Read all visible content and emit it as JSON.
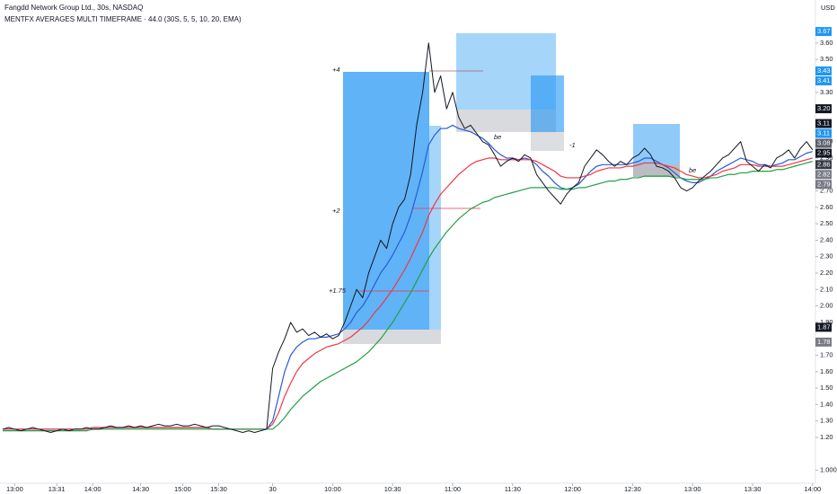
{
  "chart_data": {
    "type": "line",
    "title": "Fangdd Network Group Ltd., 30s, NASDAQ",
    "subtitle": "MENTFX AVERAGES MULTI TIMEFRAME · 44.0 (30S, 5, 5, 10, 20, EMA)",
    "currency": "USD",
    "annotations": [
      "+4",
      "+2",
      "+1.75",
      "be",
      "-1",
      "be"
    ],
    "categories": [
      null,
      null,
      "13:00",
      null,
      null,
      null,
      null,
      null,
      null,
      "13:31",
      null,
      null,
      null,
      null,
      null,
      "14:00",
      null,
      null,
      null,
      null,
      null,
      null,
      null,
      "14:30",
      null,
      null,
      null,
      null,
      null,
      null,
      "15:00",
      null,
      null,
      null,
      null,
      null,
      "15:30",
      null,
      null,
      null,
      null,
      null,
      null,
      null,
      null,
      "30",
      null,
      null,
      null,
      null,
      null,
      null,
      null,
      null,
      null,
      "10:00",
      null,
      null,
      null,
      null,
      null,
      null,
      null,
      null,
      null,
      "10:30",
      null,
      null,
      null,
      null,
      null,
      null,
      null,
      null,
      null,
      "11:00",
      null,
      null,
      null,
      null,
      null,
      null,
      null,
      null,
      null,
      "11:30",
      null,
      null,
      null,
      null,
      null,
      null,
      null,
      null,
      null,
      "12:00",
      null,
      null,
      null,
      null,
      null,
      null,
      null,
      null,
      null,
      "12:30",
      null,
      null,
      null,
      null,
      null,
      null,
      null,
      null,
      null,
      "13:00",
      null,
      null,
      null,
      null,
      null,
      null,
      null,
      null,
      null,
      "13:30",
      null,
      null,
      null,
      null,
      null,
      null,
      null,
      null,
      null,
      "14:00"
    ],
    "series": [
      {
        "color": "#131722",
        "values": [
          1.25,
          1.26,
          1.25,
          1.24,
          1.25,
          1.26,
          1.25,
          1.24,
          1.23,
          1.24,
          1.25,
          1.24,
          1.25,
          1.25,
          1.26,
          1.25,
          1.25,
          1.26,
          1.27,
          1.26,
          1.26,
          1.27,
          1.26,
          1.27,
          1.26,
          1.27,
          1.28,
          1.27,
          1.27,
          1.28,
          1.27,
          1.27,
          1.28,
          1.27,
          1.26,
          1.27,
          1.27,
          1.26,
          1.25,
          1.24,
          1.23,
          1.24,
          1.23,
          1.24,
          1.25,
          1.62,
          1.72,
          1.8,
          1.9,
          1.84,
          1.86,
          1.82,
          1.84,
          1.81,
          1.83,
          1.8,
          1.82,
          1.9,
          2.0,
          2.1,
          2.05,
          2.2,
          2.3,
          2.4,
          2.35,
          2.5,
          2.6,
          2.65,
          2.8,
          3.1,
          3.3,
          3.6,
          3.3,
          3.4,
          3.2,
          3.3,
          3.15,
          3.08,
          3.1,
          3.05,
          3.0,
          2.98,
          2.92,
          2.85,
          2.88,
          2.9,
          2.88,
          2.92,
          2.9,
          2.8,
          2.75,
          2.7,
          2.66,
          2.62,
          2.68,
          2.72,
          2.75,
          2.85,
          2.9,
          2.95,
          2.92,
          2.88,
          2.85,
          2.88,
          2.86,
          2.9,
          2.92,
          2.96,
          2.92,
          2.85,
          2.84,
          2.82,
          2.78,
          2.72,
          2.7,
          2.72,
          2.76,
          2.79,
          2.82,
          2.86,
          2.9,
          2.92,
          2.96,
          3.0,
          2.88,
          2.85,
          2.82,
          2.86,
          2.84,
          2.9,
          2.92,
          2.95,
          2.9,
          2.96,
          3.0,
          2.95
        ]
      },
      {
        "color": "#2a5bd7",
        "values": [
          1.25,
          1.25,
          1.25,
          1.25,
          1.25,
          1.25,
          1.25,
          1.25,
          1.25,
          1.25,
          1.25,
          1.25,
          1.25,
          1.25,
          1.25,
          1.26,
          1.26,
          1.26,
          1.26,
          1.26,
          1.26,
          1.26,
          1.26,
          1.26,
          1.26,
          1.26,
          1.26,
          1.26,
          1.26,
          1.26,
          1.26,
          1.26,
          1.26,
          1.26,
          1.26,
          1.25,
          1.25,
          1.25,
          1.25,
          1.25,
          1.25,
          1.25,
          1.25,
          1.25,
          1.25,
          1.3,
          1.45,
          1.6,
          1.7,
          1.75,
          1.78,
          1.8,
          1.8,
          1.81,
          1.81,
          1.82,
          1.83,
          1.86,
          1.9,
          1.96,
          2.0,
          2.06,
          2.13,
          2.2,
          2.25,
          2.31,
          2.38,
          2.45,
          2.55,
          2.68,
          2.82,
          2.98,
          3.04,
          3.08,
          3.08,
          3.1,
          3.08,
          3.07,
          3.06,
          3.04,
          3.02,
          2.99,
          2.95,
          2.92,
          2.9,
          2.9,
          2.89,
          2.9,
          2.89,
          2.86,
          2.82,
          2.79,
          2.75,
          2.72,
          2.71,
          2.72,
          2.74,
          2.78,
          2.82,
          2.85,
          2.86,
          2.86,
          2.86,
          2.86,
          2.86,
          2.87,
          2.88,
          2.9,
          2.9,
          2.88,
          2.86,
          2.84,
          2.81,
          2.78,
          2.76,
          2.75,
          2.75,
          2.77,
          2.79,
          2.82,
          2.84,
          2.86,
          2.88,
          2.9,
          2.89,
          2.88,
          2.86,
          2.86,
          2.85,
          2.86,
          2.87,
          2.89,
          2.89,
          2.91,
          2.93,
          2.94
        ]
      },
      {
        "color": "#f23645",
        "values": [
          1.25,
          1.25,
          1.25,
          1.25,
          1.25,
          1.25,
          1.25,
          1.25,
          1.25,
          1.25,
          1.25,
          1.25,
          1.25,
          1.25,
          1.25,
          1.26,
          1.26,
          1.26,
          1.26,
          1.26,
          1.26,
          1.26,
          1.26,
          1.26,
          1.26,
          1.26,
          1.26,
          1.26,
          1.26,
          1.26,
          1.26,
          1.26,
          1.26,
          1.26,
          1.26,
          1.25,
          1.25,
          1.25,
          1.25,
          1.25,
          1.25,
          1.25,
          1.25,
          1.25,
          1.25,
          1.28,
          1.35,
          1.45,
          1.53,
          1.6,
          1.65,
          1.68,
          1.71,
          1.73,
          1.75,
          1.76,
          1.77,
          1.79,
          1.81,
          1.84,
          1.87,
          1.91,
          1.96,
          2.0,
          2.05,
          2.1,
          2.16,
          2.22,
          2.29,
          2.37,
          2.45,
          2.55,
          2.62,
          2.68,
          2.72,
          2.76,
          2.8,
          2.83,
          2.86,
          2.88,
          2.89,
          2.9,
          2.9,
          2.89,
          2.89,
          2.89,
          2.89,
          2.89,
          2.89,
          2.88,
          2.86,
          2.84,
          2.82,
          2.79,
          2.78,
          2.78,
          2.78,
          2.79,
          2.8,
          2.82,
          2.83,
          2.84,
          2.84,
          2.84,
          2.85,
          2.85,
          2.86,
          2.87,
          2.87,
          2.87,
          2.86,
          2.85,
          2.84,
          2.82,
          2.8,
          2.79,
          2.78,
          2.78,
          2.79,
          2.8,
          2.82,
          2.83,
          2.84,
          2.86,
          2.86,
          2.86,
          2.85,
          2.85,
          2.85,
          2.85,
          2.85,
          2.86,
          2.87,
          2.88,
          2.89,
          2.9
        ]
      },
      {
        "color": "#22a046",
        "values": [
          1.24,
          1.24,
          1.24,
          1.24,
          1.24,
          1.24,
          1.24,
          1.24,
          1.24,
          1.24,
          1.24,
          1.24,
          1.24,
          1.24,
          1.24,
          1.25,
          1.25,
          1.25,
          1.25,
          1.25,
          1.25,
          1.25,
          1.25,
          1.25,
          1.25,
          1.25,
          1.25,
          1.25,
          1.25,
          1.25,
          1.25,
          1.25,
          1.25,
          1.25,
          1.25,
          1.25,
          1.25,
          1.25,
          1.25,
          1.25,
          1.25,
          1.25,
          1.25,
          1.25,
          1.25,
          1.25,
          1.28,
          1.32,
          1.37,
          1.41,
          1.45,
          1.48,
          1.51,
          1.54,
          1.56,
          1.58,
          1.6,
          1.62,
          1.64,
          1.66,
          1.69,
          1.72,
          1.76,
          1.8,
          1.85,
          1.9,
          1.96,
          2.02,
          2.08,
          2.15,
          2.22,
          2.29,
          2.35,
          2.4,
          2.45,
          2.49,
          2.53,
          2.56,
          2.59,
          2.61,
          2.63,
          2.64,
          2.66,
          2.67,
          2.68,
          2.69,
          2.7,
          2.71,
          2.72,
          2.72,
          2.72,
          2.72,
          2.72,
          2.71,
          2.71,
          2.71,
          2.72,
          2.72,
          2.73,
          2.74,
          2.75,
          2.76,
          2.76,
          2.77,
          2.77,
          2.78,
          2.78,
          2.79,
          2.79,
          2.79,
          2.79,
          2.79,
          2.78,
          2.78,
          2.77,
          2.77,
          2.77,
          2.77,
          2.78,
          2.78,
          2.79,
          2.8,
          2.8,
          2.81,
          2.81,
          2.82,
          2.82,
          2.82,
          2.82,
          2.83,
          2.83,
          2.84,
          2.85,
          2.86,
          2.87,
          2.88
        ]
      }
    ],
    "ylim": [
      0.91,
      3.862
    ],
    "yticks": [
      {
        "value": 1,
        "label": "1.0000"
      },
      {
        "value": 1.2,
        "label": "1.20"
      },
      {
        "value": 1.3,
        "label": "1.30"
      },
      {
        "value": 1.4,
        "label": "1.40"
      },
      {
        "value": 1.5,
        "label": "1.50"
      },
      {
        "value": 1.6,
        "label": "1.60"
      },
      {
        "value": 1.7,
        "label": "1.70"
      },
      {
        "value": 1.9,
        "label": "1.90"
      },
      {
        "value": 2,
        "label": "2.00"
      },
      {
        "value": 2.1,
        "label": "2.10"
      },
      {
        "value": 2.2,
        "label": "2.20"
      },
      {
        "value": 2.3,
        "label": "2.30"
      },
      {
        "value": 2.4,
        "label": "2.40"
      },
      {
        "value": 2.5,
        "label": "2.50"
      },
      {
        "value": 2.6,
        "label": "2.60"
      },
      {
        "value": 2.7,
        "label": "2.70"
      },
      {
        "value": 2.9,
        "label": "2.90"
      },
      {
        "value": 3,
        "label": "3.00"
      },
      {
        "value": 3.3,
        "label": "3.30"
      },
      {
        "value": 3.5,
        "label": "3.50"
      },
      {
        "value": 3.6,
        "label": "3.60"
      }
    ],
    "price_labels": [
      {
        "value": 3.67,
        "label": "3.67",
        "color": "#2196f3"
      },
      {
        "value": 3.43,
        "label": "3.43",
        "color": "#2196f3"
      },
      {
        "value": 3.41,
        "label": "3.41",
        "color": "#2196f3"
      },
      {
        "value": 3.2,
        "label": "3.20",
        "color": "#131722"
      },
      {
        "value": 3.11,
        "label": "3.11",
        "color": "#131722"
      },
      {
        "value": 3.11,
        "label": "3.11",
        "color": "#2196f3"
      },
      {
        "value": 3.08,
        "label": "3.08",
        "color": "#5d606b"
      },
      {
        "value": 2.95,
        "label": "2.95",
        "color": "#131722"
      },
      {
        "value": 2.86,
        "label": "2.86",
        "color": "#363a45"
      },
      {
        "value": 2.82,
        "label": "2.82",
        "color": "#787b86"
      },
      {
        "value": 2.79,
        "label": "2.79",
        "color": "#787b86"
      },
      {
        "value": 1.87,
        "label": "1.87",
        "color": "#131722"
      },
      {
        "value": 1.78,
        "label": "1.78",
        "color": "#787b86"
      }
    ]
  }
}
